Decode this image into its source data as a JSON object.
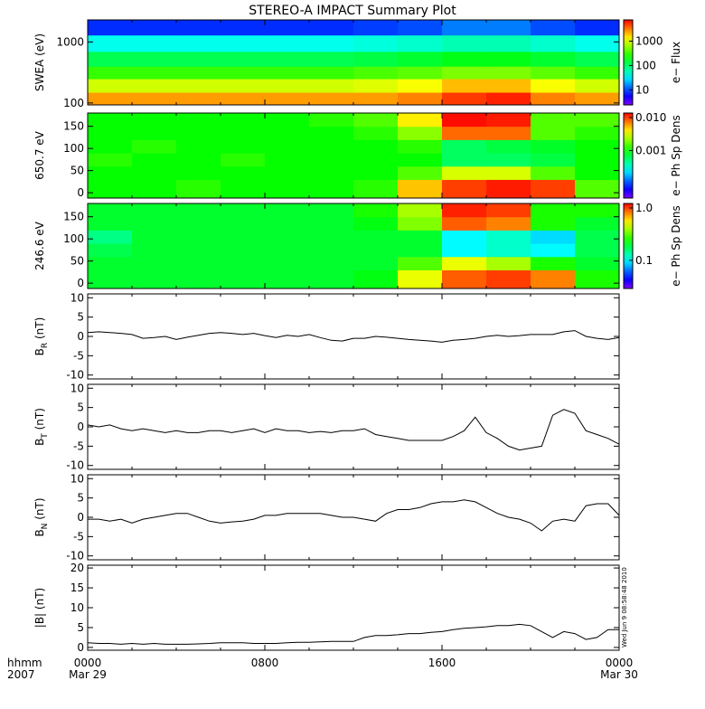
{
  "title": "STEREO-A IMPACT Summary Plot",
  "timestamp": "Wed Jun  9 08:58:48 2010",
  "x_axis": {
    "unit_label": "hhmm",
    "year_label": "2007",
    "ticks": [
      {
        "value": 0,
        "label": "0000"
      },
      {
        "value": 8,
        "label": "0800"
      },
      {
        "value": 16,
        "label": "1600"
      },
      {
        "value": 24,
        "label": "0000"
      }
    ],
    "dates": [
      {
        "value": 0,
        "label": "Mar 29"
      },
      {
        "value": 24,
        "label": "Mar 30"
      }
    ]
  },
  "chart_data": [
    {
      "type": "heatmap",
      "ylabel": "SWEA (eV)",
      "ylog": true,
      "xlim": [
        0,
        24
      ],
      "ylim": [
        93,
        2300
      ],
      "yticks": [
        100,
        1000
      ],
      "x": [
        0,
        2,
        4,
        6,
        8,
        10,
        12,
        14,
        16,
        18,
        20,
        22,
        24
      ],
      "y": [
        93,
        150,
        250,
        400,
        700,
        1300,
        2300
      ],
      "z": [
        [
          2500,
          2500,
          2500,
          2500,
          2500,
          2500,
          2500,
          3000,
          5000,
          6000,
          3000,
          2500
        ],
        [
          900,
          900,
          900,
          900,
          900,
          900,
          1000,
          1200,
          2000,
          2000,
          1200,
          900
        ],
        [
          300,
          300,
          300,
          300,
          300,
          300,
          350,
          400,
          500,
          500,
          400,
          300
        ],
        [
          120,
          120,
          120,
          120,
          120,
          120,
          130,
          150,
          180,
          180,
          150,
          120
        ],
        [
          40,
          40,
          40,
          40,
          40,
          40,
          45,
          50,
          60,
          60,
          50,
          40
        ],
        [
          8,
          8,
          8,
          8,
          8,
          8,
          9,
          10,
          14,
          14,
          10,
          8
        ]
      ],
      "colorbar": {
        "label": "e− Flux",
        "log": true,
        "clim": [
          2.4,
          7500
        ],
        "ticks": [
          10,
          100,
          1000
        ]
      }
    },
    {
      "type": "heatmap",
      "ylabel": "650.7 eV",
      "ylog": false,
      "xlim": [
        0,
        24
      ],
      "ylim": [
        -12,
        180
      ],
      "yticks": [
        0,
        50,
        100,
        150
      ],
      "x": [
        0,
        2,
        4,
        6,
        8,
        10,
        12,
        14,
        16,
        18,
        20,
        22,
        24
      ],
      "y": [
        -12,
        30,
        60,
        90,
        120,
        150,
        180
      ],
      "z": [
        [
          0.001,
          0.001,
          0.0012,
          0.001,
          0.001,
          0.001,
          0.0012,
          0.005,
          0.01,
          0.012,
          0.01,
          0.0015
        ],
        [
          0.001,
          0.001,
          0.001,
          0.001,
          0.001,
          0.001,
          0.001,
          0.0015,
          0.003,
          0.003,
          0.0015,
          0.001
        ],
        [
          0.0012,
          0.001,
          0.001,
          0.0012,
          0.001,
          0.001,
          0.001,
          0.001,
          0.0006,
          0.0006,
          0.0007,
          0.001
        ],
        [
          0.001,
          0.0012,
          0.001,
          0.001,
          0.001,
          0.001,
          0.001,
          0.0012,
          0.0006,
          0.0007,
          0.0008,
          0.001
        ],
        [
          0.001,
          0.001,
          0.001,
          0.001,
          0.001,
          0.001,
          0.0012,
          0.002,
          0.008,
          0.008,
          0.0015,
          0.0012
        ],
        [
          0.001,
          0.001,
          0.001,
          0.001,
          0.001,
          0.0012,
          0.0015,
          0.004,
          0.013,
          0.012,
          0.0015,
          0.0015
        ]
      ],
      "colorbar": {
        "label": "e− Ph Sp Dens",
        "log": true,
        "clim": [
          3.6e-05,
          0.0138
        ],
        "ticks": [
          0.001,
          {
            "value": 0.01,
            "label": "0.010"
          }
        ]
      }
    },
    {
      "type": "heatmap",
      "ylabel": "246.6 eV",
      "ylog": false,
      "xlim": [
        0,
        24
      ],
      "ylim": [
        -12,
        180
      ],
      "yticks": [
        0,
        50,
        100,
        150
      ],
      "x": [
        0,
        2,
        4,
        6,
        8,
        10,
        12,
        14,
        16,
        18,
        20,
        22,
        24
      ],
      "y": [
        -12,
        30,
        60,
        90,
        120,
        150,
        180
      ],
      "z": [
        [
          0.2,
          0.2,
          0.2,
          0.2,
          0.2,
          0.2,
          0.22,
          0.5,
          0.9,
          1.0,
          0.8,
          0.25
        ],
        [
          0.2,
          0.2,
          0.2,
          0.2,
          0.2,
          0.2,
          0.2,
          0.3,
          0.5,
          0.4,
          0.25,
          0.2
        ],
        [
          0.18,
          0.2,
          0.2,
          0.2,
          0.2,
          0.2,
          0.2,
          0.2,
          0.1,
          0.12,
          0.1,
          0.18
        ],
        [
          0.15,
          0.2,
          0.2,
          0.2,
          0.2,
          0.2,
          0.2,
          0.2,
          0.1,
          0.12,
          0.09,
          0.18
        ],
        [
          0.2,
          0.2,
          0.2,
          0.2,
          0.2,
          0.2,
          0.22,
          0.35,
          0.9,
          0.8,
          0.25,
          0.2
        ],
        [
          0.2,
          0.2,
          0.2,
          0.2,
          0.2,
          0.2,
          0.25,
          0.4,
          1.1,
          1.0,
          0.25,
          0.25
        ]
      ],
      "colorbar": {
        "label": "e− Ph Sp Dens",
        "log": true,
        "clim": [
          0.029,
          1.22
        ],
        "ticks": [
          {
            "value": 1,
            "label": "1.0"
          },
          0.1
        ]
      }
    },
    {
      "type": "line",
      "ylabel": "B",
      "ylabel_sub": "R",
      "ylabel_unit": " (nT)",
      "color": "#000000",
      "xlim": [
        0,
        24
      ],
      "ylim": [
        -11,
        11
      ],
      "yticks": [
        -10,
        -5,
        0,
        5,
        10
      ],
      "x": [
        0,
        0.5,
        1,
        1.5,
        2,
        2.5,
        3,
        3.5,
        4,
        4.5,
        5,
        5.5,
        6,
        6.5,
        7,
        7.5,
        8,
        8.5,
        9,
        9.5,
        10,
        10.5,
        11,
        11.5,
        12,
        12.5,
        13,
        13.5,
        14,
        14.5,
        15,
        15.5,
        16,
        16.5,
        17,
        17.5,
        18,
        18.5,
        19,
        19.5,
        20,
        20.5,
        21,
        21.5,
        22,
        22.5,
        23,
        23.5,
        24
      ],
      "values": [
        1,
        1.2,
        1,
        0.8,
        0.5,
        -0.5,
        -0.3,
        0,
        -0.8,
        -0.2,
        0.3,
        0.8,
        1,
        0.8,
        0.5,
        0.8,
        0.2,
        -0.3,
        0.3,
        0,
        0.5,
        -0.3,
        -1,
        -1.2,
        -0.5,
        -0.5,
        0,
        -0.2,
        -0.5,
        -0.8,
        -1,
        -1.2,
        -1.5,
        -1,
        -0.8,
        -0.5,
        0,
        0.3,
        0,
        0.2,
        0.5,
        0.5,
        0.5,
        1.2,
        1.5,
        0,
        -0.5,
        -0.8,
        -0.3
      ]
    },
    {
      "type": "line",
      "ylabel": "B",
      "ylabel_sub": "T",
      "ylabel_unit": " (nT)",
      "color": "#000000",
      "xlim": [
        0,
        24
      ],
      "ylim": [
        -11,
        11
      ],
      "yticks": [
        -10,
        -5,
        0,
        5,
        10
      ],
      "x": [
        0,
        0.5,
        1,
        1.5,
        2,
        2.5,
        3,
        3.5,
        4,
        4.5,
        5,
        5.5,
        6,
        6.5,
        7,
        7.5,
        8,
        8.5,
        9,
        9.5,
        10,
        10.5,
        11,
        11.5,
        12,
        12.5,
        13,
        13.5,
        14,
        14.5,
        15,
        15.5,
        16,
        16.5,
        17,
        17.5,
        18,
        18.5,
        19,
        19.5,
        20,
        20.5,
        21,
        21.5,
        22,
        22.5,
        23,
        23.5,
        24
      ],
      "values": [
        0.5,
        0,
        0.5,
        -0.5,
        -1,
        -0.5,
        -1,
        -1.5,
        -1,
        -1.5,
        -1.5,
        -1,
        -1,
        -1.5,
        -1,
        -0.5,
        -1.5,
        -0.5,
        -1,
        -1,
        -1.5,
        -1.2,
        -1.5,
        -1,
        -1,
        -0.5,
        -2,
        -2.5,
        -3,
        -3.5,
        -3.5,
        -3.5,
        -3.5,
        -2.5,
        -1,
        2.5,
        -1.5,
        -3,
        -5,
        -6,
        -5.5,
        -5,
        3,
        4.5,
        3.5,
        -1,
        -2,
        -3,
        -4.5
      ]
    },
    {
      "type": "line",
      "ylabel": "B",
      "ylabel_sub": "N",
      "ylabel_unit": " (nT)",
      "color": "#000000",
      "xlim": [
        0,
        24
      ],
      "ylim": [
        -11,
        11
      ],
      "yticks": [
        -10,
        -5,
        0,
        5,
        10
      ],
      "x": [
        0,
        0.5,
        1,
        1.5,
        2,
        2.5,
        3,
        3.5,
        4,
        4.5,
        5,
        5.5,
        6,
        6.5,
        7,
        7.5,
        8,
        8.5,
        9,
        9.5,
        10,
        10.5,
        11,
        11.5,
        12,
        12.5,
        13,
        13.5,
        14,
        14.5,
        15,
        15.5,
        16,
        16.5,
        17,
        17.5,
        18,
        18.5,
        19,
        19.5,
        20,
        20.5,
        21,
        21.5,
        22,
        22.5,
        23,
        23.5,
        24
      ],
      "values": [
        -0.5,
        -0.5,
        -1,
        -0.5,
        -1.5,
        -0.5,
        0,
        0.5,
        1,
        1,
        0,
        -1,
        -1.5,
        -1.2,
        -1,
        -0.5,
        0.5,
        0.5,
        1,
        1,
        1,
        1,
        0.5,
        0,
        0,
        -0.5,
        -1,
        1,
        2,
        2,
        2.5,
        3.5,
        4,
        4,
        4.5,
        4,
        2.5,
        1,
        0,
        -0.5,
        -1.5,
        -3.5,
        -1,
        -0.5,
        -1,
        3,
        3.5,
        3.5,
        0.5
      ]
    },
    {
      "type": "line",
      "ylabel": "|B| (nT)",
      "color": "#000000",
      "xlim": [
        0,
        24
      ],
      "ylim": [
        -0.7,
        20.7
      ],
      "yticks": [
        0,
        5,
        10,
        15,
        20
      ],
      "x": [
        0,
        0.5,
        1,
        1.5,
        2,
        2.5,
        3,
        3.5,
        4,
        4.5,
        5,
        5.5,
        6,
        6.5,
        7,
        7.5,
        8,
        8.5,
        9,
        9.5,
        10,
        10.5,
        11,
        11.5,
        12,
        12.5,
        13,
        13.5,
        14,
        14.5,
        15,
        15.5,
        16,
        16.5,
        17,
        17.5,
        18,
        18.5,
        19,
        19.5,
        20,
        20.5,
        21,
        21.5,
        22,
        22.5,
        23,
        23.5,
        24
      ],
      "values": [
        1.2,
        1,
        1,
        0.8,
        1,
        0.8,
        1,
        0.8,
        0.8,
        0.8,
        0.9,
        1,
        1.2,
        1.2,
        1.2,
        1,
        1,
        1,
        1.2,
        1.3,
        1.3,
        1.4,
        1.5,
        1.5,
        1.5,
        2.5,
        3,
        3,
        3.2,
        3.5,
        3.5,
        3.8,
        4,
        4.5,
        4.8,
        5,
        5.2,
        5.5,
        5.5,
        5.8,
        5.5,
        4,
        2.5,
        4,
        3.5,
        2,
        2.5,
        4.5,
        4.5
      ]
    }
  ]
}
